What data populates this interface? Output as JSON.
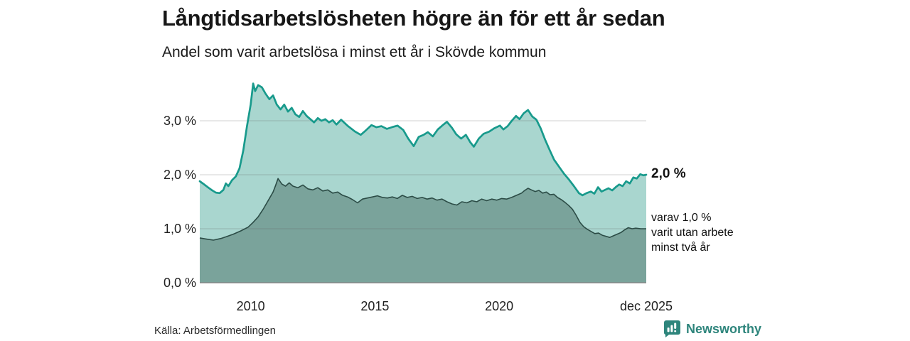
{
  "header": {
    "title": "Långtidsarbetslösheten högre än för ett år sedan",
    "subtitle": "Andel som varit arbetslösa i minst ett år i Skövde kommun"
  },
  "annotations": {
    "latest_value_label": "2,0 %",
    "sub_series_label": "varav 1,0 %\nvarit utan arbete\nminst två år"
  },
  "footer": {
    "source": "Källa: Arbetsförmedlingen",
    "brand": "Newsworthy"
  },
  "colors": {
    "line_total": "#189a8c",
    "fill_total": "#a9d6cf",
    "line_two_years": "#2c4c46",
    "fill_two_years": "#7aa39b",
    "gridline": "#d6d6d6",
    "baseline": "#7f7f7f",
    "brand_teal": "#2e857c",
    "text": "#1a1a1a"
  },
  "chart_data": {
    "type": "area",
    "title": "Långtidsarbetslösheten högre än för ett år sedan",
    "subtitle": "Andel som varit arbetslösa i minst ett år i Skövde kommun",
    "xlabel": "",
    "ylabel": "",
    "grid": true,
    "x_range": [
      2007.95,
      2025.92
    ],
    "y_range": [
      0,
      3.9
    ],
    "y_ticks": [
      {
        "v": 0,
        "label": "0,0 %"
      },
      {
        "v": 1,
        "label": "1,0 %"
      },
      {
        "v": 2,
        "label": "2,0 %"
      },
      {
        "v": 3,
        "label": "3,0 %"
      }
    ],
    "x_ticks": [
      {
        "t": 2010,
        "label": "2010"
      },
      {
        "t": 2015,
        "label": "2015"
      },
      {
        "t": 2020,
        "label": "2020"
      },
      {
        "t": 2025.92,
        "label": "dec 2025"
      }
    ],
    "series": [
      {
        "name": "arbetslösa minst ett år",
        "end_label": "2,0 %",
        "end_value": 2.0,
        "points": [
          [
            2007.95,
            1.88
          ],
          [
            2008.1,
            1.83
          ],
          [
            2008.3,
            1.76
          ],
          [
            2008.45,
            1.71
          ],
          [
            2008.6,
            1.67
          ],
          [
            2008.75,
            1.66
          ],
          [
            2008.9,
            1.72
          ],
          [
            2009.0,
            1.84
          ],
          [
            2009.1,
            1.79
          ],
          [
            2009.25,
            1.9
          ],
          [
            2009.4,
            1.97
          ],
          [
            2009.55,
            2.12
          ],
          [
            2009.7,
            2.45
          ],
          [
            2009.85,
            2.9
          ],
          [
            2010.0,
            3.3
          ],
          [
            2010.1,
            3.69
          ],
          [
            2010.18,
            3.55
          ],
          [
            2010.3,
            3.66
          ],
          [
            2010.45,
            3.62
          ],
          [
            2010.6,
            3.5
          ],
          [
            2010.75,
            3.4
          ],
          [
            2010.9,
            3.47
          ],
          [
            2011.05,
            3.3
          ],
          [
            2011.2,
            3.21
          ],
          [
            2011.35,
            3.3
          ],
          [
            2011.5,
            3.17
          ],
          [
            2011.65,
            3.24
          ],
          [
            2011.8,
            3.12
          ],
          [
            2011.95,
            3.07
          ],
          [
            2012.1,
            3.18
          ],
          [
            2012.25,
            3.09
          ],
          [
            2012.4,
            3.03
          ],
          [
            2012.55,
            2.97
          ],
          [
            2012.7,
            3.05
          ],
          [
            2012.85,
            3.0
          ],
          [
            2013.0,
            3.03
          ],
          [
            2013.15,
            2.97
          ],
          [
            2013.3,
            3.01
          ],
          [
            2013.45,
            2.93
          ],
          [
            2013.64,
            3.02
          ],
          [
            2013.92,
            2.9
          ],
          [
            2014.2,
            2.8
          ],
          [
            2014.43,
            2.74
          ],
          [
            2014.63,
            2.82
          ],
          [
            2014.86,
            2.92
          ],
          [
            2015.06,
            2.88
          ],
          [
            2015.26,
            2.9
          ],
          [
            2015.48,
            2.85
          ],
          [
            2015.68,
            2.88
          ],
          [
            2015.91,
            2.91
          ],
          [
            2016.14,
            2.83
          ],
          [
            2016.34,
            2.67
          ],
          [
            2016.56,
            2.53
          ],
          [
            2016.76,
            2.7
          ],
          [
            2016.96,
            2.74
          ],
          [
            2017.13,
            2.79
          ],
          [
            2017.33,
            2.71
          ],
          [
            2017.53,
            2.84
          ],
          [
            2017.73,
            2.92
          ],
          [
            2017.9,
            2.98
          ],
          [
            2018.1,
            2.87
          ],
          [
            2018.27,
            2.75
          ],
          [
            2018.47,
            2.67
          ],
          [
            2018.66,
            2.74
          ],
          [
            2018.84,
            2.6
          ],
          [
            2018.98,
            2.52
          ],
          [
            2019.18,
            2.67
          ],
          [
            2019.38,
            2.76
          ],
          [
            2019.6,
            2.8
          ],
          [
            2019.8,
            2.86
          ],
          [
            2020.03,
            2.91
          ],
          [
            2020.17,
            2.84
          ],
          [
            2020.34,
            2.9
          ],
          [
            2020.51,
            3.0
          ],
          [
            2020.68,
            3.09
          ],
          [
            2020.82,
            3.03
          ],
          [
            2020.99,
            3.14
          ],
          [
            2021.16,
            3.2
          ],
          [
            2021.33,
            3.08
          ],
          [
            2021.5,
            3.02
          ],
          [
            2021.67,
            2.86
          ],
          [
            2021.84,
            2.66
          ],
          [
            2022.01,
            2.48
          ],
          [
            2022.21,
            2.28
          ],
          [
            2022.41,
            2.15
          ],
          [
            2022.61,
            2.02
          ],
          [
            2022.81,
            1.91
          ],
          [
            2023.01,
            1.79
          ],
          [
            2023.21,
            1.66
          ],
          [
            2023.35,
            1.62
          ],
          [
            2023.52,
            1.66
          ],
          [
            2023.69,
            1.69
          ],
          [
            2023.83,
            1.65
          ],
          [
            2023.98,
            1.77
          ],
          [
            2024.12,
            1.69
          ],
          [
            2024.26,
            1.72
          ],
          [
            2024.4,
            1.75
          ],
          [
            2024.55,
            1.71
          ],
          [
            2024.69,
            1.77
          ],
          [
            2024.83,
            1.82
          ],
          [
            2024.97,
            1.79
          ],
          [
            2025.11,
            1.88
          ],
          [
            2025.26,
            1.84
          ],
          [
            2025.4,
            1.95
          ],
          [
            2025.54,
            1.93
          ],
          [
            2025.68,
            2.01
          ],
          [
            2025.8,
            1.99
          ],
          [
            2025.92,
            2.0
          ]
        ]
      },
      {
        "name": "varav utan arbete minst två år",
        "end_label": "varav 1,0 % varit utan arbete minst två år",
        "end_value": 1.0,
        "points": [
          [
            2007.95,
            0.83
          ],
          [
            2008.2,
            0.81
          ],
          [
            2008.5,
            0.79
          ],
          [
            2008.8,
            0.82
          ],
          [
            2009.0,
            0.85
          ],
          [
            2009.3,
            0.9
          ],
          [
            2009.6,
            0.96
          ],
          [
            2009.9,
            1.03
          ],
          [
            2010.1,
            1.12
          ],
          [
            2010.3,
            1.22
          ],
          [
            2010.5,
            1.36
          ],
          [
            2010.7,
            1.52
          ],
          [
            2010.9,
            1.68
          ],
          [
            2011.0,
            1.8
          ],
          [
            2011.1,
            1.93
          ],
          [
            2011.25,
            1.83
          ],
          [
            2011.4,
            1.79
          ],
          [
            2011.55,
            1.85
          ],
          [
            2011.7,
            1.79
          ],
          [
            2011.9,
            1.76
          ],
          [
            2012.1,
            1.81
          ],
          [
            2012.3,
            1.74
          ],
          [
            2012.5,
            1.72
          ],
          [
            2012.7,
            1.76
          ],
          [
            2012.9,
            1.7
          ],
          [
            2013.1,
            1.72
          ],
          [
            2013.3,
            1.66
          ],
          [
            2013.5,
            1.68
          ],
          [
            2013.7,
            1.62
          ],
          [
            2013.9,
            1.59
          ],
          [
            2014.1,
            1.54
          ],
          [
            2014.3,
            1.48
          ],
          [
            2014.5,
            1.55
          ],
          [
            2014.7,
            1.57
          ],
          [
            2014.9,
            1.59
          ],
          [
            2015.1,
            1.61
          ],
          [
            2015.3,
            1.58
          ],
          [
            2015.5,
            1.57
          ],
          [
            2015.7,
            1.59
          ],
          [
            2015.9,
            1.56
          ],
          [
            2016.1,
            1.62
          ],
          [
            2016.3,
            1.58
          ],
          [
            2016.5,
            1.6
          ],
          [
            2016.7,
            1.56
          ],
          [
            2016.9,
            1.58
          ],
          [
            2017.1,
            1.55
          ],
          [
            2017.3,
            1.57
          ],
          [
            2017.5,
            1.53
          ],
          [
            2017.7,
            1.55
          ],
          [
            2017.9,
            1.5
          ],
          [
            2018.1,
            1.46
          ],
          [
            2018.3,
            1.44
          ],
          [
            2018.5,
            1.5
          ],
          [
            2018.7,
            1.48
          ],
          [
            2018.9,
            1.52
          ],
          [
            2019.1,
            1.5
          ],
          [
            2019.3,
            1.55
          ],
          [
            2019.5,
            1.52
          ],
          [
            2019.7,
            1.55
          ],
          [
            2019.9,
            1.53
          ],
          [
            2020.1,
            1.56
          ],
          [
            2020.3,
            1.55
          ],
          [
            2020.5,
            1.58
          ],
          [
            2020.7,
            1.62
          ],
          [
            2020.9,
            1.66
          ],
          [
            2021.0,
            1.7
          ],
          [
            2021.16,
            1.75
          ],
          [
            2021.3,
            1.72
          ],
          [
            2021.45,
            1.69
          ],
          [
            2021.6,
            1.71
          ],
          [
            2021.75,
            1.66
          ],
          [
            2021.9,
            1.68
          ],
          [
            2022.05,
            1.63
          ],
          [
            2022.2,
            1.64
          ],
          [
            2022.35,
            1.58
          ],
          [
            2022.5,
            1.54
          ],
          [
            2022.65,
            1.49
          ],
          [
            2022.8,
            1.43
          ],
          [
            2022.95,
            1.36
          ],
          [
            2023.1,
            1.25
          ],
          [
            2023.25,
            1.12
          ],
          [
            2023.4,
            1.04
          ],
          [
            2023.55,
            0.99
          ],
          [
            2023.7,
            0.95
          ],
          [
            2023.85,
            0.91
          ],
          [
            2024.0,
            0.92
          ],
          [
            2024.15,
            0.88
          ],
          [
            2024.3,
            0.86
          ],
          [
            2024.45,
            0.84
          ],
          [
            2024.6,
            0.87
          ],
          [
            2024.75,
            0.9
          ],
          [
            2024.9,
            0.93
          ],
          [
            2025.05,
            0.98
          ],
          [
            2025.2,
            1.02
          ],
          [
            2025.35,
            1.0
          ],
          [
            2025.5,
            1.01
          ],
          [
            2025.7,
            1.0
          ],
          [
            2025.92,
            1.0
          ]
        ]
      }
    ]
  }
}
